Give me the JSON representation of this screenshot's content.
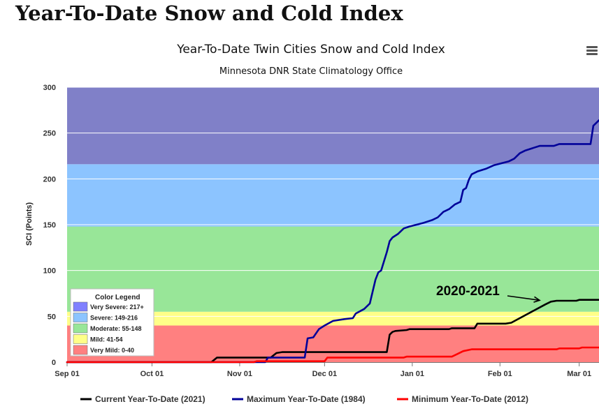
{
  "page": {
    "heading": "Year-To-Date Snow and Cold Index",
    "menu_icon": "hamburger-menu-icon"
  },
  "chart_data": {
    "type": "line",
    "title": "Year-To-Date Twin Cities Snow and Cold Index",
    "subtitle": "Minnesota DNR State Climatology Office",
    "ylabel": "SCI (Points)",
    "xlabel": "",
    "ylim": [
      0,
      300
    ],
    "yticks": [
      0,
      50,
      100,
      150,
      200,
      250,
      300
    ],
    "x_unit": "date",
    "xlim": [
      "2020-09-01",
      "2021-03-08"
    ],
    "xticks": [
      {
        "date": "2020-09-01",
        "label": "Sep 01"
      },
      {
        "date": "2020-10-01",
        "label": "Oct 01"
      },
      {
        "date": "2020-11-01",
        "label": "Nov 01"
      },
      {
        "date": "2020-12-01",
        "label": "Dec 01"
      },
      {
        "date": "2021-01-01",
        "label": "Jan 01"
      },
      {
        "date": "2021-02-01",
        "label": "Feb 01"
      },
      {
        "date": "2021-03-01",
        "label": "Mar 01"
      }
    ],
    "grid": true,
    "bands": [
      {
        "from": 0,
        "to": 40,
        "color": "#ff8080"
      },
      {
        "from": 40,
        "to": 55,
        "color": "#ffff88"
      },
      {
        "from": 55,
        "to": 148,
        "color": "#98e698"
      },
      {
        "from": 148,
        "to": 216,
        "color": "#8cc4ff"
      },
      {
        "from": 216,
        "to": 300,
        "color": "#8080c8"
      }
    ],
    "color_legend": {
      "title": "Color Legend",
      "items": [
        {
          "label": "Very Severe: 217+",
          "color": "#8080ff"
        },
        {
          "label": "Severe: 149-216",
          "color": "#8cc4ff"
        },
        {
          "label": "Moderate: 55-148",
          "color": "#98e698"
        },
        {
          "label": "Mild: 41-54",
          "color": "#ffff88"
        },
        {
          "label": "Very Mild: 0-40",
          "color": "#ff8080"
        }
      ]
    },
    "annotation": {
      "text": "2020-2021",
      "date": "2021-02-16",
      "y": 66
    },
    "legend_position": "bottom",
    "series": [
      {
        "name": "Current Year-To-Date (2021)",
        "color": "#000000",
        "points": [
          [
            "2020-09-01",
            0
          ],
          [
            "2020-10-22",
            0
          ],
          [
            "2020-10-24",
            5
          ],
          [
            "2020-11-12",
            5
          ],
          [
            "2020-11-14",
            10
          ],
          [
            "2020-11-16",
            11
          ],
          [
            "2020-12-23",
            11
          ],
          [
            "2020-12-24",
            30
          ],
          [
            "2020-12-25",
            33
          ],
          [
            "2020-12-26",
            34
          ],
          [
            "2020-12-30",
            35
          ],
          [
            "2020-12-31",
            36
          ],
          [
            "2021-01-14",
            36
          ],
          [
            "2021-01-15",
            37
          ],
          [
            "2021-01-23",
            37
          ],
          [
            "2021-01-24",
            42
          ],
          [
            "2021-02-03",
            42
          ],
          [
            "2021-02-05",
            43
          ],
          [
            "2021-02-17",
            63
          ],
          [
            "2021-02-19",
            66
          ],
          [
            "2021-02-21",
            67
          ],
          [
            "2021-02-28",
            67
          ],
          [
            "2021-03-01",
            68
          ],
          [
            "2021-03-08",
            68
          ]
        ]
      },
      {
        "name": "Maximum Year-To-Date (1984)",
        "color": "#000099",
        "points": [
          [
            "2020-09-01",
            0
          ],
          [
            "2020-11-10",
            0
          ],
          [
            "2020-11-11",
            5
          ],
          [
            "2020-11-24",
            5
          ],
          [
            "2020-11-25",
            26
          ],
          [
            "2020-11-27",
            27
          ],
          [
            "2020-11-29",
            36
          ],
          [
            "2020-12-01",
            40
          ],
          [
            "2020-12-04",
            45
          ],
          [
            "2020-12-08",
            47
          ],
          [
            "2020-12-11",
            48
          ],
          [
            "2020-12-12",
            53
          ],
          [
            "2020-12-15",
            58
          ],
          [
            "2020-12-17",
            64
          ],
          [
            "2020-12-19",
            90
          ],
          [
            "2020-12-20",
            98
          ],
          [
            "2020-12-21",
            100
          ],
          [
            "2020-12-23",
            120
          ],
          [
            "2020-12-24",
            132
          ],
          [
            "2020-12-25",
            136
          ],
          [
            "2020-12-27",
            140
          ],
          [
            "2020-12-29",
            146
          ],
          [
            "2020-12-31",
            148
          ],
          [
            "2021-01-05",
            152
          ],
          [
            "2021-01-08",
            155
          ],
          [
            "2021-01-10",
            158
          ],
          [
            "2021-01-12",
            164
          ],
          [
            "2021-01-14",
            167
          ],
          [
            "2021-01-16",
            172
          ],
          [
            "2021-01-18",
            175
          ],
          [
            "2021-01-19",
            188
          ],
          [
            "2021-01-20",
            190
          ],
          [
            "2021-01-21",
            199
          ],
          [
            "2021-01-22",
            205
          ],
          [
            "2021-01-24",
            208
          ],
          [
            "2021-01-27",
            211
          ],
          [
            "2021-01-30",
            215
          ],
          [
            "2021-02-04",
            219
          ],
          [
            "2021-02-06",
            222
          ],
          [
            "2021-02-08",
            228
          ],
          [
            "2021-02-10",
            231
          ],
          [
            "2021-02-13",
            234
          ],
          [
            "2021-02-15",
            236
          ],
          [
            "2021-02-20",
            236
          ],
          [
            "2021-02-22",
            238
          ],
          [
            "2021-03-05",
            238
          ],
          [
            "2021-03-06",
            258
          ],
          [
            "2021-03-08",
            264
          ]
        ]
      },
      {
        "name": "Minimum Year-To-Date (2012)",
        "color": "#ff0000",
        "points": [
          [
            "2020-09-01",
            0
          ],
          [
            "2020-11-06",
            0
          ],
          [
            "2020-11-07",
            1
          ],
          [
            "2020-12-01",
            1
          ],
          [
            "2020-12-02",
            5
          ],
          [
            "2020-12-29",
            5
          ],
          [
            "2020-12-30",
            6
          ],
          [
            "2021-01-15",
            6
          ],
          [
            "2021-01-17",
            9
          ],
          [
            "2021-01-19",
            12
          ],
          [
            "2021-01-22",
            14
          ],
          [
            "2021-02-21",
            14
          ],
          [
            "2021-02-22",
            15
          ],
          [
            "2021-03-01",
            15
          ],
          [
            "2021-03-02",
            16
          ],
          [
            "2021-03-08",
            16
          ]
        ]
      }
    ]
  }
}
